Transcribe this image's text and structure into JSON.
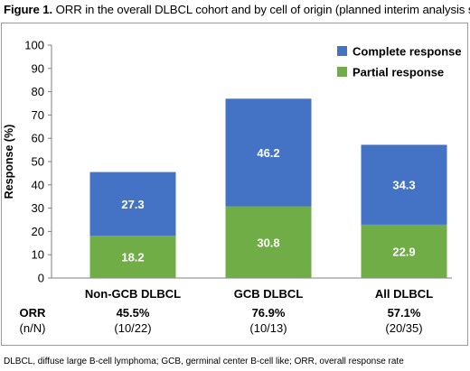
{
  "figure": {
    "title_prefix": "Figure 1.",
    "title_text": " ORR in the overall DLBCL cohort and by cell of origin (planned interim analysis set)"
  },
  "chart_data": {
    "type": "bar",
    "stacked": true,
    "title": "",
    "xlabel": "",
    "ylabel": "Response (%)",
    "ylim": [
      0,
      100
    ],
    "yticks": [
      0,
      10,
      20,
      30,
      40,
      50,
      60,
      70,
      80,
      90,
      100
    ],
    "grid": false,
    "legend_position": "top-right",
    "categories": [
      "Non-GCB DLBCL",
      "GCB DLBCL",
      "All DLBCL"
    ],
    "series": [
      {
        "name": "Partial response",
        "color": "#70ad47",
        "values": [
          18.2,
          30.8,
          22.9
        ]
      },
      {
        "name": "Complete response",
        "color": "#4472c4",
        "values": [
          27.3,
          46.2,
          34.3
        ]
      }
    ],
    "orr_row": {
      "label": "ORR",
      "sublabel": "(n/N)",
      "values": [
        "45.5%",
        "76.9%",
        "57.1%"
      ],
      "counts": [
        "(10/22)",
        "(10/13)",
        "(20/35)"
      ]
    }
  },
  "footnote": "DLBCL, diffuse large B-cell lymphoma; GCB, germinal center B-cell like; ORR, overall response rate"
}
